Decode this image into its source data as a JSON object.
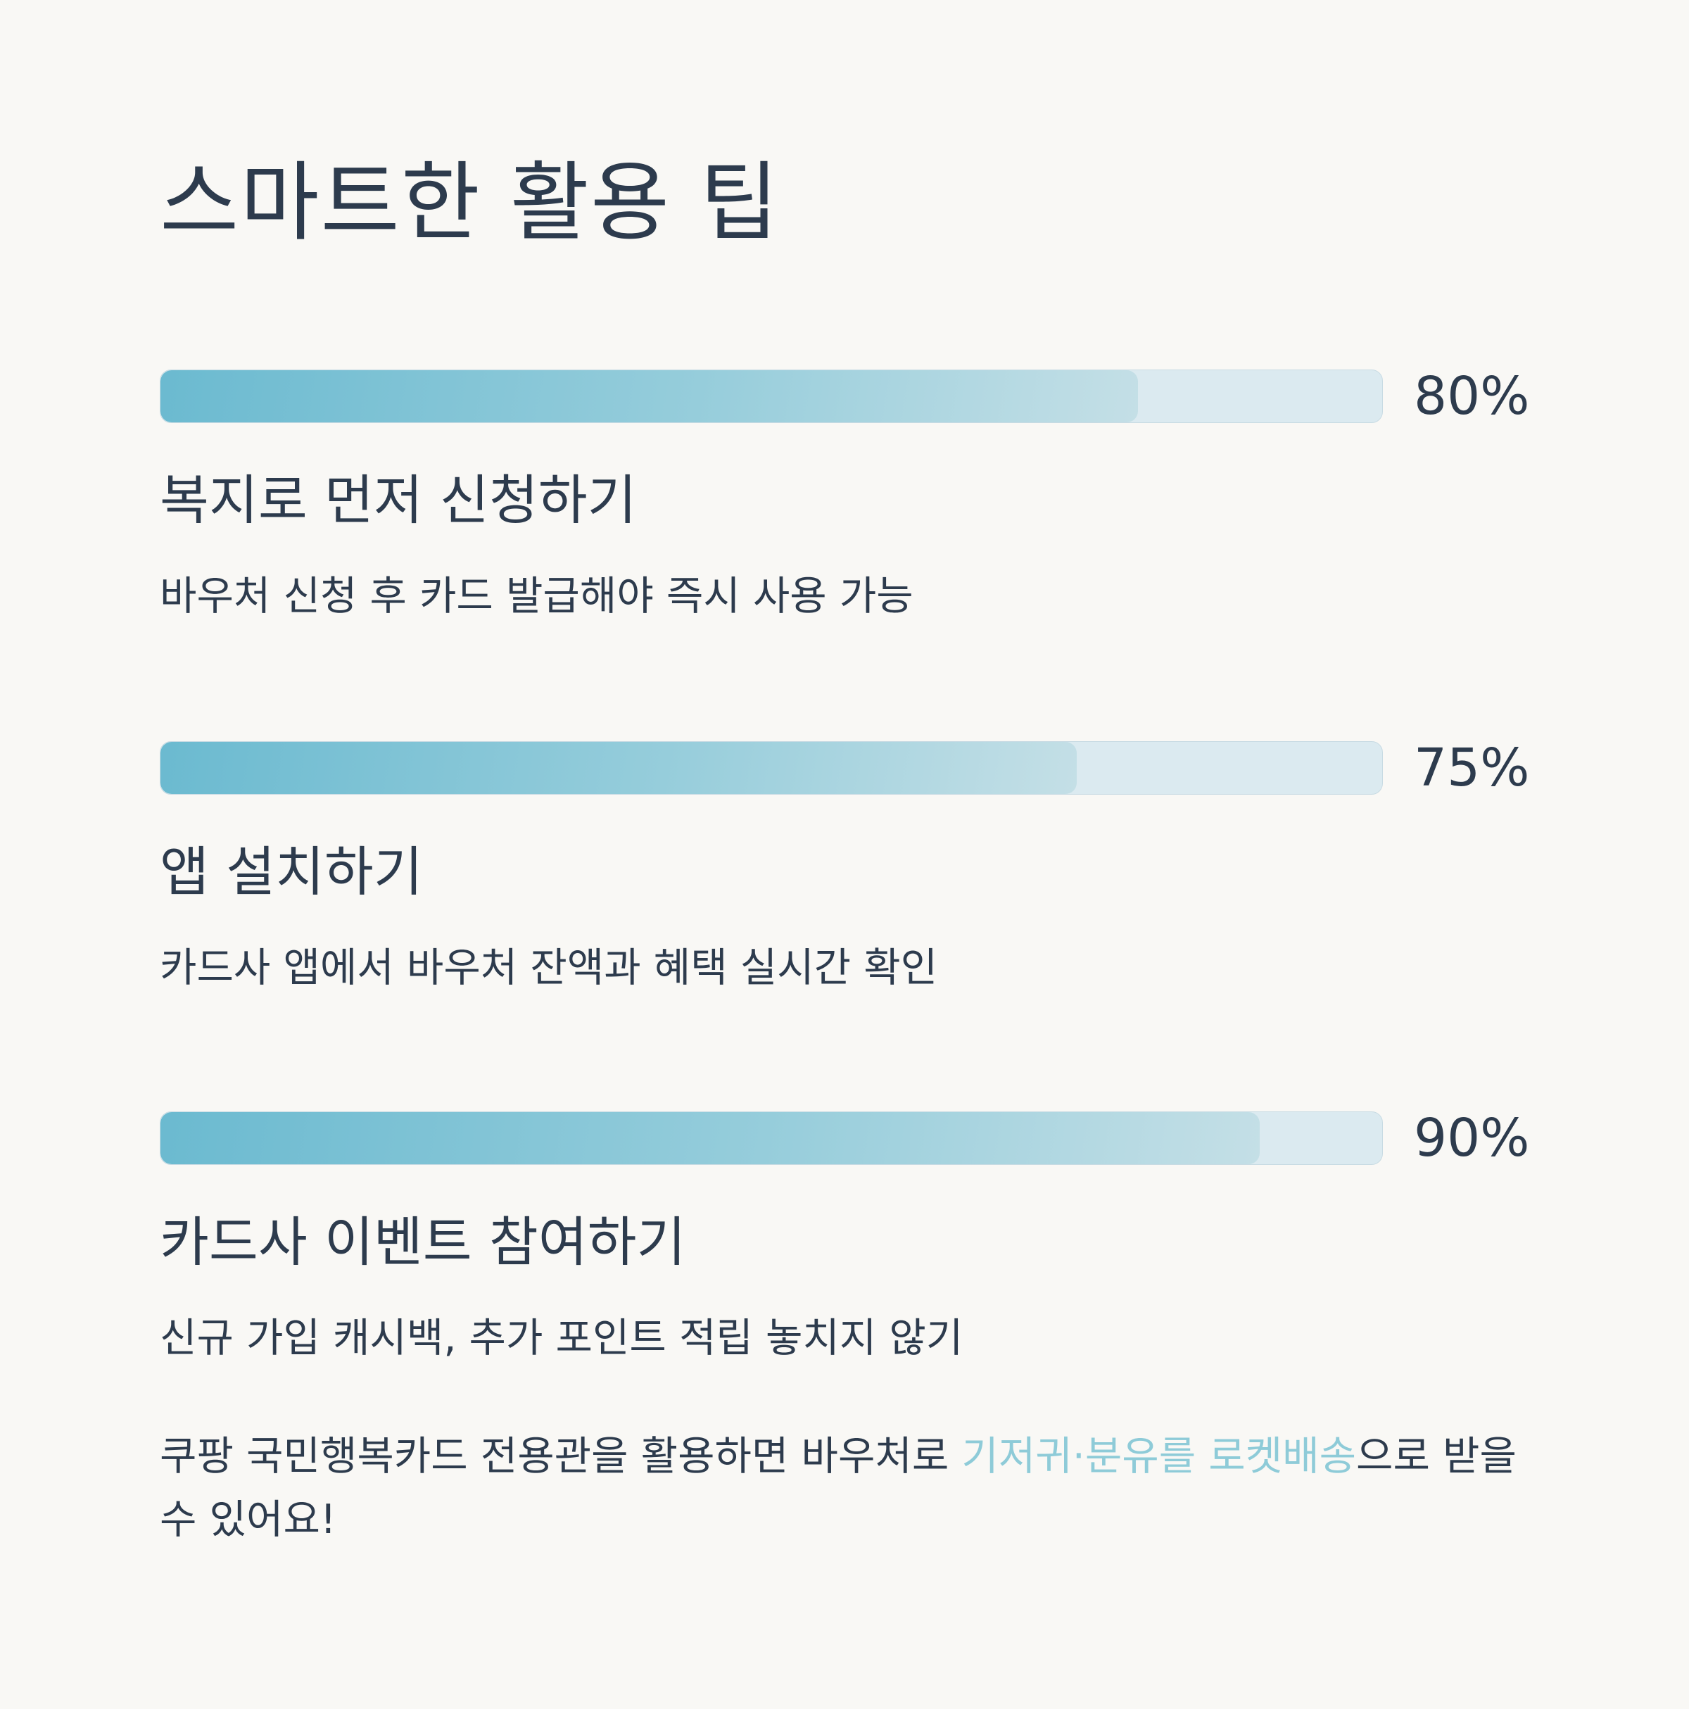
{
  "title": "스마트한 활용 팁",
  "tips": [
    {
      "percent_label": "80%",
      "progress": 0.8,
      "title": "복지로 먼저 신청하기",
      "description": "바우처 신청 후 카드 발급해야 즉시 사용 가능"
    },
    {
      "percent_label": "75%",
      "progress": 0.75,
      "title": "앱 설치하기",
      "description": "카드사 앱에서 바우처 잔액과 혜택 실시간 확인"
    },
    {
      "percent_label": "90%",
      "progress": 0.9,
      "title": "카드사 이벤트 참여하기",
      "description": "신규 가입 캐시백, 추가 포인트 적립 놓치지 않기"
    }
  ],
  "footer": {
    "before": "쿠팡 국민행복카드 전용관을 활용하면 바우처로 ",
    "highlight": "기저귀·분유를 로켓배송",
    "after": "으로 받을 수 있어요!"
  },
  "colors": {
    "background": "#f9f8f5",
    "text": "#2d3b4d",
    "accent": "#8ecbd8",
    "bar_start": "#6bbad0",
    "bar_end": "#c4dfe6",
    "track": "#dbeaf0"
  }
}
